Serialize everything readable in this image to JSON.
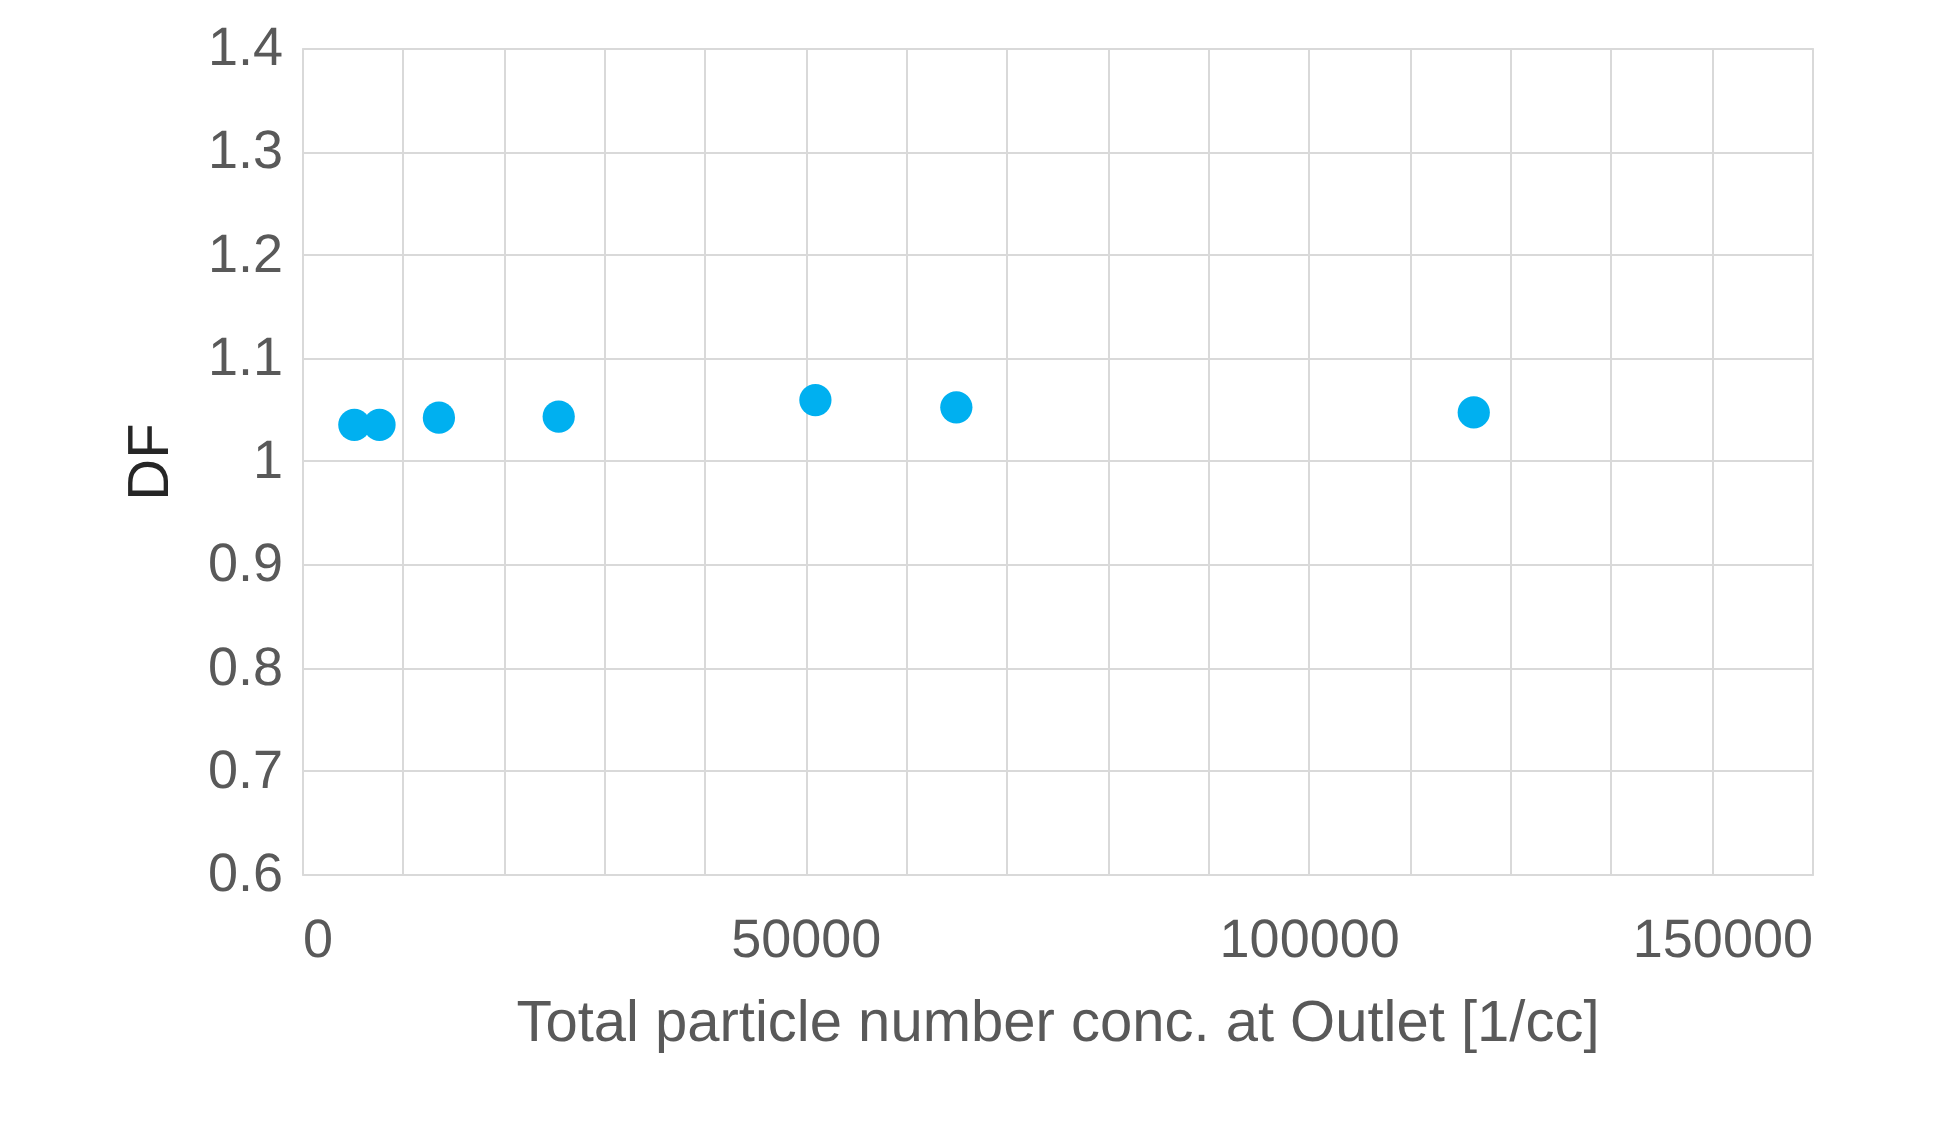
{
  "chart_data": {
    "type": "scatter",
    "xlabel": "Total particle number conc. at Outlet [1/cc]",
    "ylabel": "DF",
    "x": [
      5200,
      7700,
      13600,
      25500,
      51000,
      65000,
      116400
    ],
    "series": [
      {
        "color": "#00b0f0",
        "values": [
          1.035,
          1.035,
          1.042,
          1.043,
          1.059,
          1.052,
          1.047
        ]
      }
    ],
    "xlim": [
      0,
      150000
    ],
    "xticks": [
      0,
      {
        "value": 10000,
        "label": null
      },
      {
        "value": 20000,
        "label": null
      },
      {
        "value": 30000,
        "label": null
      },
      {
        "value": 40000,
        "label": null
      },
      50000,
      {
        "value": 60000,
        "label": null
      },
      {
        "value": 70000,
        "label": null
      },
      {
        "value": 80000,
        "label": null
      },
      {
        "value": 90000,
        "label": null
      },
      100000,
      {
        "value": 110000,
        "label": null
      },
      {
        "value": 120000,
        "label": null
      },
      {
        "value": 130000,
        "label": null
      },
      {
        "value": 140000,
        "label": null
      },
      150000
    ],
    "ylim": [
      0.6,
      1.4
    ],
    "yticks": [
      0.6,
      0.7,
      0.8,
      0.9,
      1,
      1.1,
      1.2,
      1.3,
      1.4
    ],
    "grid": true,
    "marker": "circle"
  }
}
